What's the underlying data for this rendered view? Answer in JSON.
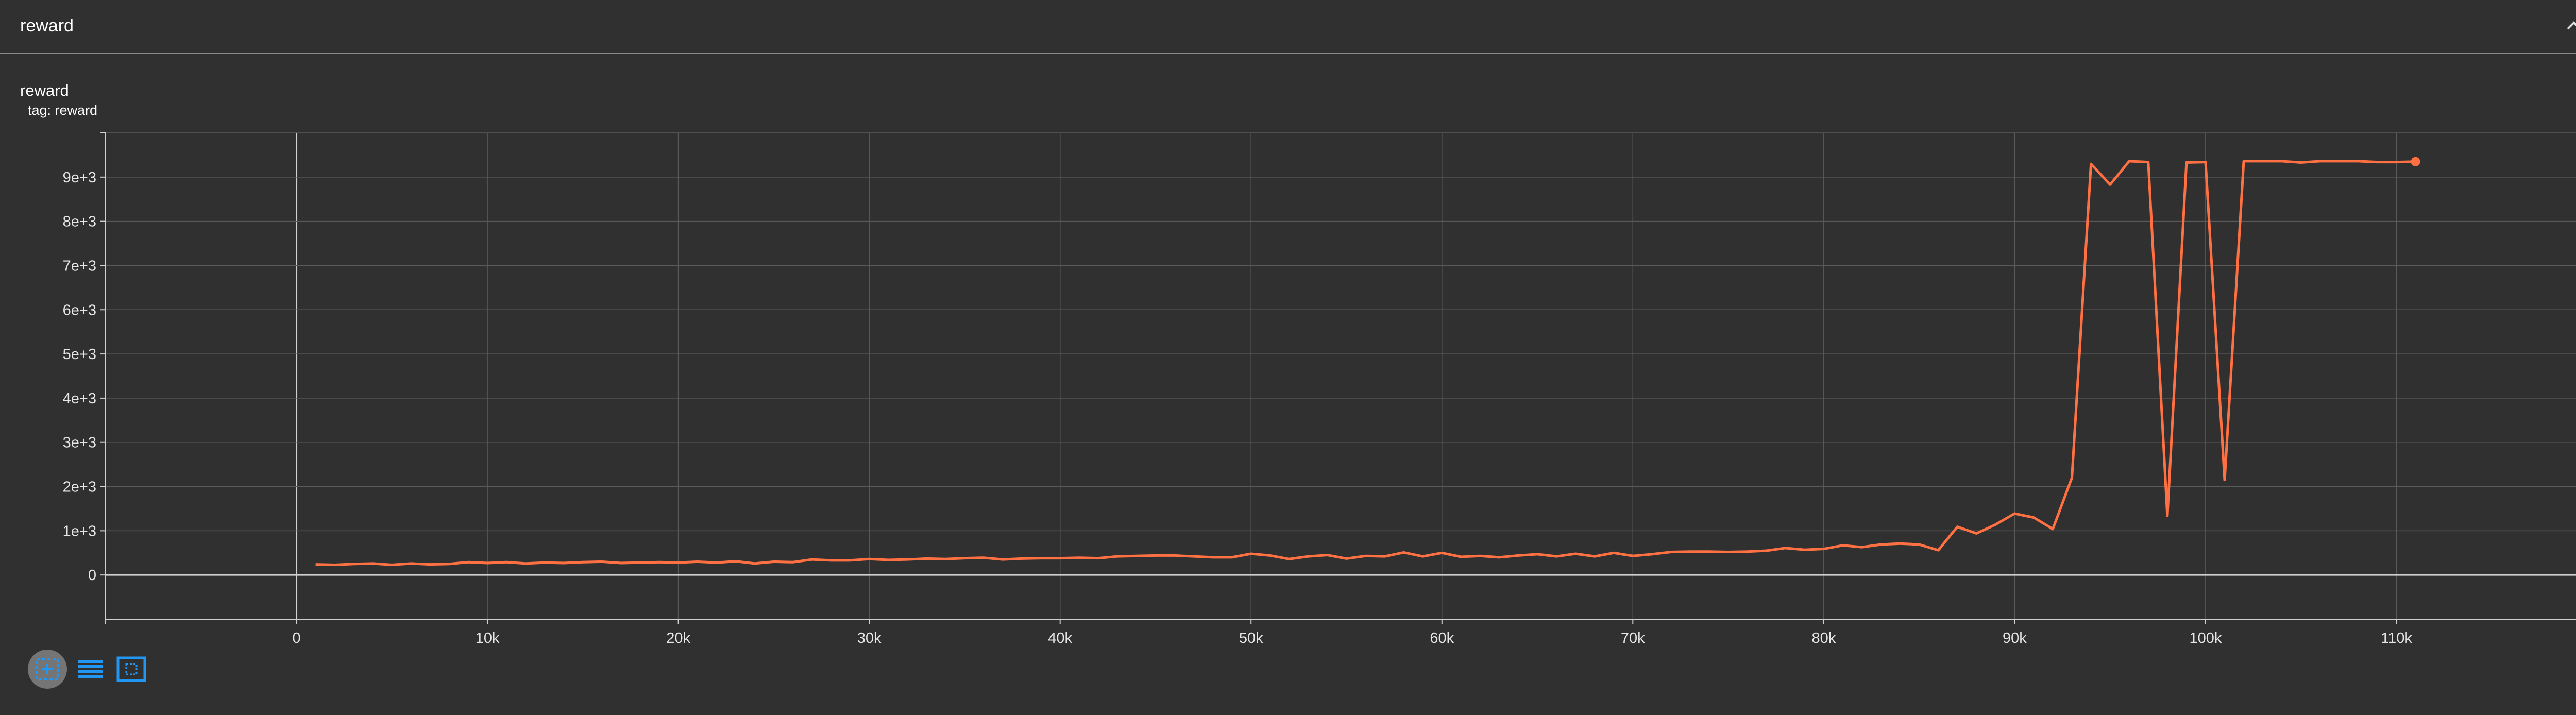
{
  "section": {
    "title": "reward",
    "collapse_icon": "chevron-up-icon"
  },
  "card": {
    "title": "reward",
    "subtitle": "tag: reward"
  },
  "toolbar": {
    "buttons": [
      {
        "name": "fit-domain-button",
        "icon": "fit-domain-icon",
        "active": true
      },
      {
        "name": "toggle-log-scale-button",
        "icon": "list-lines-icon",
        "active": false
      },
      {
        "name": "expand-chart-button",
        "icon": "expand-icon",
        "active": false
      }
    ]
  },
  "colors": {
    "background": "#303030",
    "grid": "#5a5a5a",
    "axis": "#d0d0d0",
    "series": "#ff7043",
    "toolbar_accent": "#2196f3"
  },
  "chart_data": {
    "type": "line",
    "title": "reward",
    "xlabel": "",
    "ylabel": "",
    "grid": true,
    "xlim": [
      -10000,
      120000
    ],
    "ylim": [
      -1000,
      10000
    ],
    "x_ticks": [
      0,
      10000,
      20000,
      30000,
      40000,
      50000,
      60000,
      70000,
      80000,
      90000,
      100000,
      110000
    ],
    "x_tick_labels": [
      "0",
      "10k",
      "20k",
      "30k",
      "40k",
      "50k",
      "60k",
      "70k",
      "80k",
      "90k",
      "100k",
      "110k"
    ],
    "y_ticks": [
      0,
      1000,
      2000,
      3000,
      4000,
      5000,
      6000,
      7000,
      8000,
      9000
    ],
    "y_tick_labels": [
      "0",
      "1e+3",
      "2e+3",
      "3e+3",
      "4e+3",
      "5e+3",
      "6e+3",
      "7e+3",
      "8e+3",
      "9e+3"
    ],
    "series": [
      {
        "x": [
          1000,
          2000,
          3000,
          4000,
          5000,
          6000,
          7000,
          8000,
          9000,
          10000,
          11000,
          12000,
          13000,
          14000,
          15000,
          16000,
          17000,
          18000,
          19000,
          20000,
          21000,
          22000,
          23000,
          24000,
          25000,
          26000,
          27000,
          28000,
          29000,
          30000,
          31000,
          32000,
          33000,
          34000,
          35000,
          36000,
          37000,
          38000,
          39000,
          40000,
          41000,
          42000,
          43000,
          44000,
          45000,
          46000,
          47000,
          48000,
          49000,
          50000,
          51000,
          52000,
          53000,
          54000,
          55000,
          56000,
          57000,
          58000,
          59000,
          60000,
          61000,
          62000,
          63000,
          64000,
          65000,
          66000,
          67000,
          68000,
          69000,
          70000,
          71000,
          72000,
          73000,
          74000,
          75000,
          76000,
          77000,
          78000,
          79000,
          80000,
          81000,
          82000,
          83000,
          84000,
          85000,
          86000,
          87000,
          88000,
          89000,
          90000,
          91000,
          92000,
          93000,
          94000,
          95000,
          96000,
          97000,
          98000,
          99000,
          100000,
          101000,
          102000,
          103000,
          104000,
          105000,
          106000,
          107000,
          108000,
          109000,
          110000,
          111000
        ],
        "y": [
          240,
          230,
          250,
          260,
          230,
          260,
          240,
          250,
          290,
          270,
          290,
          260,
          280,
          270,
          290,
          300,
          270,
          280,
          290,
          280,
          300,
          280,
          310,
          260,
          300,
          290,
          350,
          330,
          330,
          360,
          340,
          350,
          370,
          360,
          380,
          390,
          350,
          370,
          380,
          380,
          390,
          380,
          420,
          430,
          440,
          440,
          420,
          400,
          400,
          480,
          440,
          360,
          420,
          450,
          370,
          430,
          420,
          510,
          420,
          500,
          410,
          430,
          400,
          440,
          470,
          420,
          480,
          420,
          500,
          430,
          470,
          520,
          530,
          530,
          520,
          530,
          550,
          610,
          570,
          590,
          670,
          630,
          690,
          710,
          690,
          560,
          1090,
          940,
          1140,
          1390,
          1300,
          1040,
          2200,
          9300,
          8830,
          9360,
          9340,
          1340,
          9330,
          9340,
          2150,
          9360,
          9360,
          9360,
          9330,
          9360,
          9360,
          9360,
          9340,
          9340,
          9350
        ]
      }
    ]
  }
}
